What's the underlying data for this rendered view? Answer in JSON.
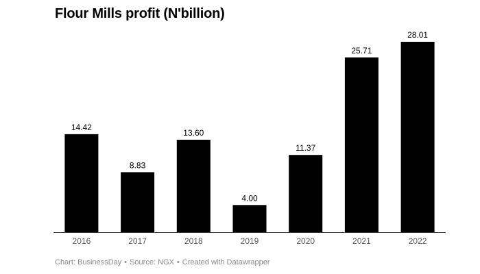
{
  "chart_data": {
    "type": "bar",
    "title": "Flour Mills profit (N'billion)",
    "xlabel": "",
    "ylabel": "",
    "categories": [
      "2016",
      "2017",
      "2018",
      "2019",
      "2020",
      "2021",
      "2022"
    ],
    "values": [
      14.42,
      8.83,
      13.6,
      4.0,
      11.37,
      25.71,
      28.01
    ],
    "value_labels": [
      "14.42",
      "8.83",
      "13.60",
      "4.00",
      "11.37",
      "25.71",
      "28.01"
    ],
    "ylim": [
      0,
      28.01
    ],
    "grid": false,
    "legend": "none",
    "bar_color": "#000000",
    "axis_color": "#333333",
    "tick_label_color": "#555555"
  },
  "footer": {
    "chart_credit": "Chart: BusinessDay",
    "source": "Source: NGX",
    "created_with": "Created with Datawrapper",
    "separator": "•"
  }
}
